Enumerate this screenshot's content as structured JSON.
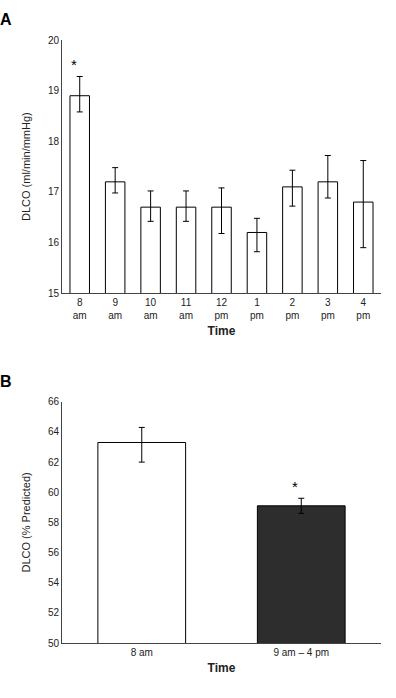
{
  "chart_data": [
    {
      "type": "bar",
      "title": "A",
      "categories": [
        "8\nam",
        "9\nam",
        "10\nam",
        "11\nam",
        "12\npm",
        "1\npm",
        "2\npm",
        "3\npm",
        "4\npm"
      ],
      "values": [
        18.9,
        17.2,
        16.7,
        16.7,
        16.7,
        16.2,
        17.1,
        17.2,
        16.8
      ],
      "errors_upper": [
        0.38,
        0.28,
        0.32,
        0.32,
        0.38,
        0.28,
        0.33,
        0.52,
        0.82
      ],
      "errors_lower": [
        0.32,
        0.22,
        0.28,
        0.28,
        0.52,
        0.38,
        0.38,
        0.32,
        0.9
      ],
      "color": "#ffffff",
      "x_label": "Time",
      "y_label": "DLCO (ml/min/mmHg)",
      "ylim": [
        15,
        20
      ],
      "yticks": [
        15,
        16,
        17,
        18,
        19,
        20
      ],
      "annotations": [
        {
          "text": "*",
          "category": "8\nam"
        }
      ],
      "grid": false
    },
    {
      "type": "bar",
      "title": "B",
      "categories": [
        "8 am",
        "9 am – 4 pm"
      ],
      "values": [
        63.3,
        59.1
      ],
      "errors_upper": [
        1.0,
        0.5
      ],
      "errors_lower": [
        1.3,
        0.5
      ],
      "colors": [
        "#ffffff",
        "#2d2d2d"
      ],
      "x_label": "Time",
      "y_label": "DLCO (% Predicted)",
      "ylim": [
        50,
        66
      ],
      "yticks": [
        50,
        52,
        54,
        56,
        58,
        60,
        62,
        64,
        66
      ],
      "annotations": [
        {
          "text": "*",
          "category": "9 am – 4 pm"
        }
      ],
      "grid": false
    }
  ]
}
